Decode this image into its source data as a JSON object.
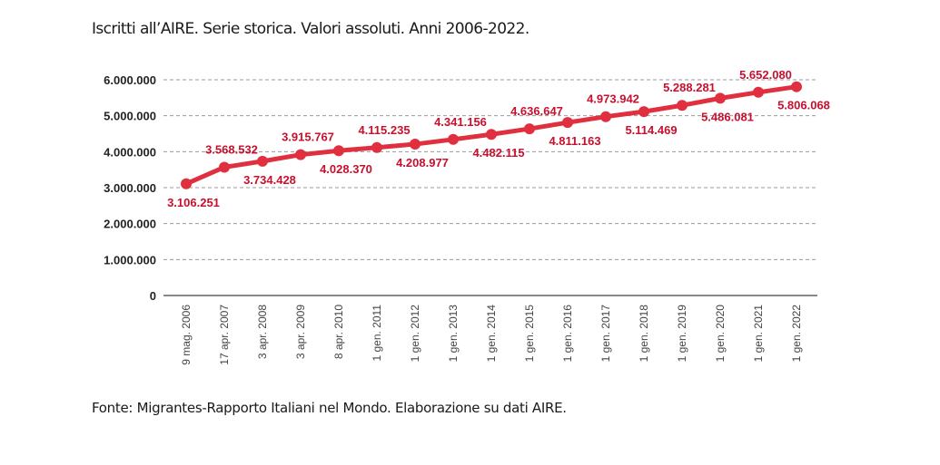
{
  "chart_data": {
    "type": "line",
    "title": "Iscritti all’AIRE. Serie storica. Valori assoluti. Anni 2006-2022.",
    "source": "Fonte: Migrantes-Rapporto Italiani nel Mondo. Elaborazione su dati AIRE.",
    "categories": [
      "9 mag. 2006",
      "17 apr. 2007",
      "3 apr. 2008",
      "3 apr. 2009",
      "8 apr. 2010",
      "1 gen. 2011",
      "1 gen. 2012",
      "1 gen. 2013",
      "1 gen. 2014",
      "1 gen. 2015",
      "1 gen. 2016",
      "1 gen. 2017",
      "1 gen. 2018",
      "1 gen. 2019",
      "1 gen. 2020",
      "1 gen. 2021",
      "1 gen. 2022"
    ],
    "values": [
      3106251,
      3568532,
      3734428,
      3915767,
      4028370,
      4115235,
      4208977,
      4341156,
      4482115,
      4636647,
      4811163,
      4973942,
      5114469,
      5288281,
      5486081,
      5652080,
      5806068
    ],
    "value_labels": [
      "3.106.251",
      "3.568.532",
      "3.734.428",
      "3.915.767",
      "4.028.370",
      "4.115.235",
      "4.208.977",
      "4.341.156",
      "4.482.115",
      "4.636.647",
      "4.811.163",
      "4.973.942",
      "5.114.469",
      "5.288.281",
      "5.486.081",
      "5.652.080",
      "5.806.068"
    ],
    "yticks": [
      0,
      1000000,
      2000000,
      3000000,
      4000000,
      5000000,
      6000000
    ],
    "ytick_labels": [
      "0",
      "1.000.000",
      "2.000.000",
      "3.000.000",
      "4.000.000",
      "5.000.000",
      "6.000.000"
    ],
    "ylim": [
      0,
      6000000
    ],
    "xlabel": "",
    "ylabel": "",
    "grid": true,
    "color": "#e03040",
    "label_color": "#c8102e"
  }
}
